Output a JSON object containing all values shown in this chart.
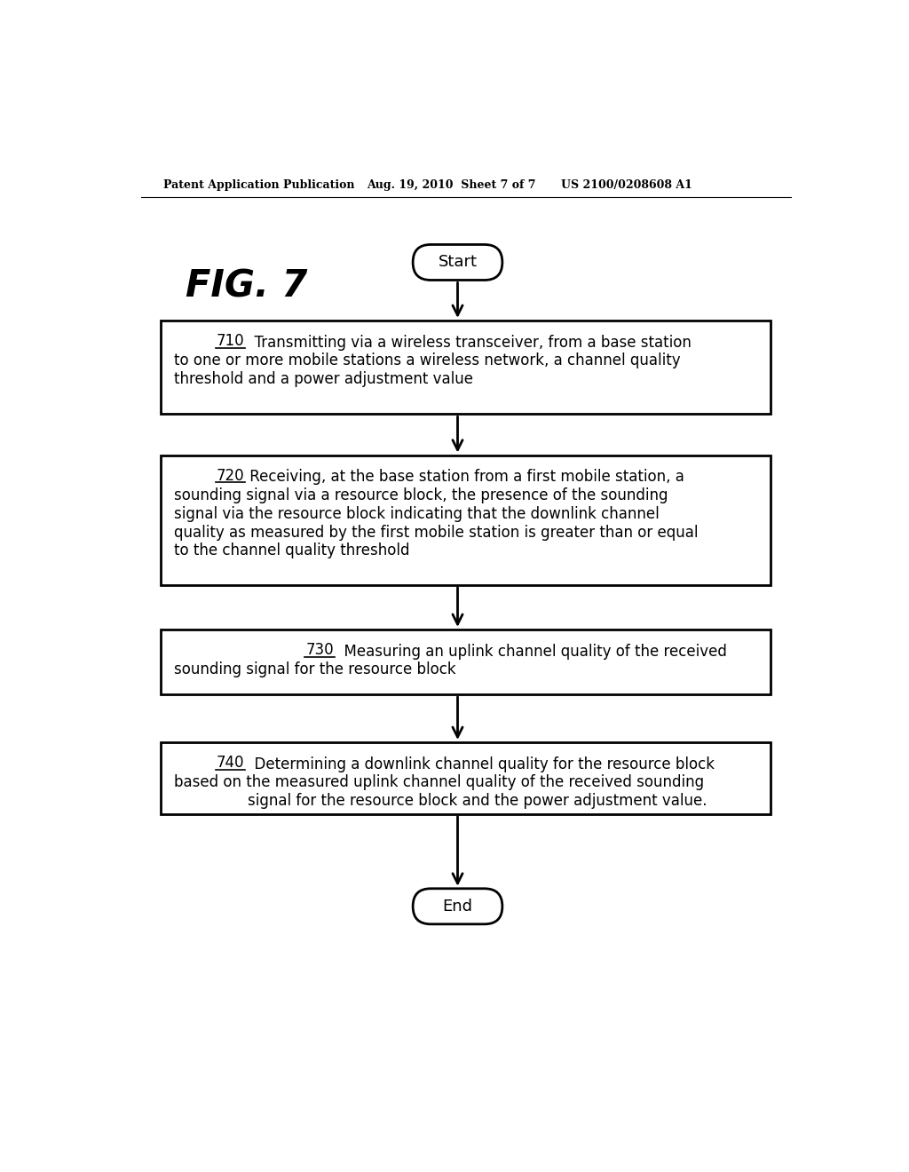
{
  "background_color": "#ffffff",
  "header_left": "Patent Application Publication",
  "header_center": "Aug. 19, 2010  Sheet 7 of 7",
  "header_right": "US 2100/0208608 A1",
  "fig_label": "FIG. 7",
  "start_label": "Start",
  "end_label": "End",
  "box710_line1": "710",
  "box710_text1": "  Transmitting via a wireless transceiver, from a base station",
  "box710_text2": "to one or more mobile stations a wireless network, a channel quality",
  "box710_text3": "threshold and a power adjustment value",
  "box720_line1": "720",
  "box720_text1": " Receiving, at the base station from a first mobile station, a",
  "box720_text2": "sounding signal via a resource block, the presence of the sounding",
  "box720_text3": "signal via the resource block indicating that the downlink channel",
  "box720_text4": "quality as measured by the first mobile station is greater than or equal",
  "box720_text5": "to the channel quality threshold",
  "box730_line1": "730",
  "box730_text1": "   Measuring an uplink channel quality of the received",
  "box730_text2": "sounding signal for the resource block",
  "box740_line1": "740",
  "box740_text1": "  Determining a downlink channel quality for the resource block",
  "box740_text2": "based on the measured uplink channel quality of the received sounding",
  "box740_text3": "    signal for the resource block and the power adjustment value."
}
